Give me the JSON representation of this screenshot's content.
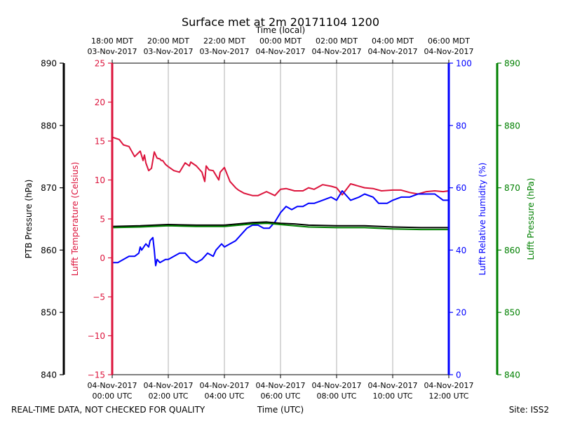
{
  "chart_data": {
    "type": "line",
    "title": "Surface met at 2m 20171104 1200",
    "top_axis_label": "Time (local)",
    "bottom_axis_label": "Time (UTC)",
    "footer_left": "REAL-TIME DATA, NOT CHECKED FOR QUALITY",
    "footer_right": "Site: ISS2",
    "x_range_hours": [
      0,
      12
    ],
    "bottom_ticks": [
      {
        "hour": 0,
        "line1": "04-Nov-2017",
        "line2": "00:00 UTC"
      },
      {
        "hour": 2,
        "line1": "04-Nov-2017",
        "line2": "02:00 UTC"
      },
      {
        "hour": 4,
        "line1": "04-Nov-2017",
        "line2": "04:00 UTC"
      },
      {
        "hour": 6,
        "line1": "04-Nov-2017",
        "line2": "06:00 UTC"
      },
      {
        "hour": 8,
        "line1": "04-Nov-2017",
        "line2": "08:00 UTC"
      },
      {
        "hour": 10,
        "line1": "04-Nov-2017",
        "line2": "10:00 UTC"
      },
      {
        "hour": 12,
        "line1": "04-Nov-2017",
        "line2": "12:00 UTC"
      }
    ],
    "top_ticks": [
      {
        "hour": 0,
        "line1": "18:00 MDT",
        "line2": "03-Nov-2017"
      },
      {
        "hour": 2,
        "line1": "20:00 MDT",
        "line2": "03-Nov-2017"
      },
      {
        "hour": 4,
        "line1": "22:00 MDT",
        "line2": "03-Nov-2017"
      },
      {
        "hour": 6,
        "line1": "00:00 MDT",
        "line2": "04-Nov-2017"
      },
      {
        "hour": 8,
        "line1": "02:00 MDT",
        "line2": "04-Nov-2017"
      },
      {
        "hour": 10,
        "line1": "04:00 MDT",
        "line2": "04-Nov-2017"
      },
      {
        "hour": 12,
        "line1": "06:00 MDT",
        "line2": "04-Nov-2017"
      }
    ],
    "axes": {
      "ptb_pressure": {
        "label": "PTB Pressure (hPa)",
        "range": [
          840,
          890
        ],
        "ticks": [
          840,
          850,
          860,
          870,
          880,
          890
        ],
        "color": "#000000"
      },
      "temperature": {
        "label": "Lufft Temperature (Celsius)",
        "range": [
          -15,
          25
        ],
        "ticks": [
          -15,
          -10,
          -5,
          0,
          5,
          10,
          15,
          20,
          25
        ],
        "color": "#dc143c"
      },
      "humidity": {
        "label": "Lufft Relative humidity (%)",
        "range": [
          0,
          100
        ],
        "ticks": [
          0,
          20,
          40,
          60,
          80,
          100
        ],
        "color": "#0000ff"
      },
      "lufft_pressure": {
        "label": "Lufft Pressure (hPa)",
        "range": [
          840,
          890
        ],
        "ticks": [
          840,
          850,
          860,
          870,
          880,
          890
        ],
        "color": "#008000"
      }
    },
    "series": [
      {
        "name": "Lufft Temperature",
        "axis": "temperature",
        "color": "#dc143c",
        "x": [
          0,
          0.25,
          0.4,
          0.6,
          0.8,
          1.0,
          1.1,
          1.15,
          1.2,
          1.3,
          1.4,
          1.5,
          1.6,
          1.7,
          1.75,
          1.8,
          1.9,
          2.0,
          2.2,
          2.4,
          2.6,
          2.75,
          2.8,
          3.0,
          3.2,
          3.3,
          3.35,
          3.45,
          3.6,
          3.8,
          3.85,
          4.0,
          4.2,
          4.4,
          4.5,
          4.7,
          5.0,
          5.2,
          5.5,
          5.8,
          6.0,
          6.2,
          6.5,
          6.8,
          7.0,
          7.2,
          7.5,
          7.8,
          8.0,
          8.2,
          8.5,
          8.8,
          9.0,
          9.3,
          9.6,
          10.0,
          10.3,
          10.6,
          10.9,
          11.2,
          11.5,
          11.8,
          12.0
        ],
        "values": [
          15.5,
          15.2,
          14.5,
          14.3,
          13.0,
          13.7,
          12.5,
          13.2,
          12.2,
          11.2,
          11.5,
          13.6,
          12.8,
          12.7,
          12.5,
          12.5,
          12.0,
          11.7,
          11.2,
          11.0,
          12.2,
          11.8,
          12.3,
          11.8,
          11.0,
          9.8,
          11.8,
          11.3,
          11.2,
          10.0,
          11.0,
          11.6,
          9.8,
          9.0,
          8.7,
          8.3,
          8.0,
          8.0,
          8.5,
          8.0,
          8.8,
          8.9,
          8.6,
          8.6,
          9.0,
          8.8,
          9.4,
          9.2,
          9.0,
          8.1,
          9.5,
          9.2,
          9.0,
          8.9,
          8.6,
          8.7,
          8.7,
          8.4,
          8.2,
          8.5,
          8.6,
          8.5,
          8.6
        ]
      },
      {
        "name": "Lufft Relative humidity",
        "axis": "humidity",
        "color": "#0000ff",
        "x": [
          0,
          0.2,
          0.4,
          0.6,
          0.8,
          0.95,
          1.0,
          1.05,
          1.2,
          1.3,
          1.35,
          1.45,
          1.5,
          1.55,
          1.6,
          1.7,
          1.9,
          2.0,
          2.2,
          2.4,
          2.6,
          2.8,
          3.0,
          3.2,
          3.4,
          3.6,
          3.7,
          3.9,
          4.0,
          4.2,
          4.4,
          4.6,
          4.8,
          5.0,
          5.2,
          5.4,
          5.6,
          5.8,
          6.0,
          6.2,
          6.4,
          6.6,
          6.8,
          7.0,
          7.2,
          7.5,
          7.8,
          8.0,
          8.2,
          8.3,
          8.5,
          8.8,
          9.0,
          9.3,
          9.5,
          9.8,
          10.0,
          10.3,
          10.6,
          10.9,
          11.2,
          11.5,
          11.8,
          12.0
        ],
        "values": [
          36,
          36,
          37,
          38,
          38,
          39,
          41,
          40,
          42,
          41,
          43,
          44,
          40,
          35,
          37,
          36,
          37,
          37,
          38,
          39,
          39,
          37,
          36,
          37,
          39,
          38,
          40,
          42,
          41,
          42,
          43,
          45,
          47,
          48,
          48,
          47,
          47,
          49,
          52,
          54,
          53,
          54,
          54,
          55,
          55,
          56,
          57,
          56,
          59,
          58,
          56,
          57,
          58,
          57,
          55,
          55,
          56,
          57,
          57,
          58,
          58,
          58,
          56,
          56
        ]
      },
      {
        "name": "PTB Pressure",
        "axis": "ptb_pressure",
        "color": "#000000",
        "x": [
          0,
          1,
          2,
          3,
          4,
          5,
          5.5,
          6,
          6.5,
          7,
          8,
          9,
          10,
          11,
          12
        ],
        "values": [
          863.8,
          863.9,
          864.1,
          864.0,
          864.0,
          864.4,
          864.5,
          864.3,
          864.2,
          864.0,
          863.9,
          863.9,
          863.7,
          863.6,
          863.6
        ]
      },
      {
        "name": "Lufft Pressure",
        "axis": "lufft_pressure",
        "color": "#008000",
        "x": [
          0,
          1,
          2,
          3,
          4,
          5,
          5.5,
          6,
          6.5,
          7,
          8,
          9,
          10,
          11,
          12
        ],
        "values": [
          863.6,
          863.7,
          863.9,
          863.8,
          863.8,
          864.2,
          864.3,
          864.1,
          863.9,
          863.7,
          863.6,
          863.6,
          863.4,
          863.3,
          863.3
        ]
      }
    ]
  }
}
